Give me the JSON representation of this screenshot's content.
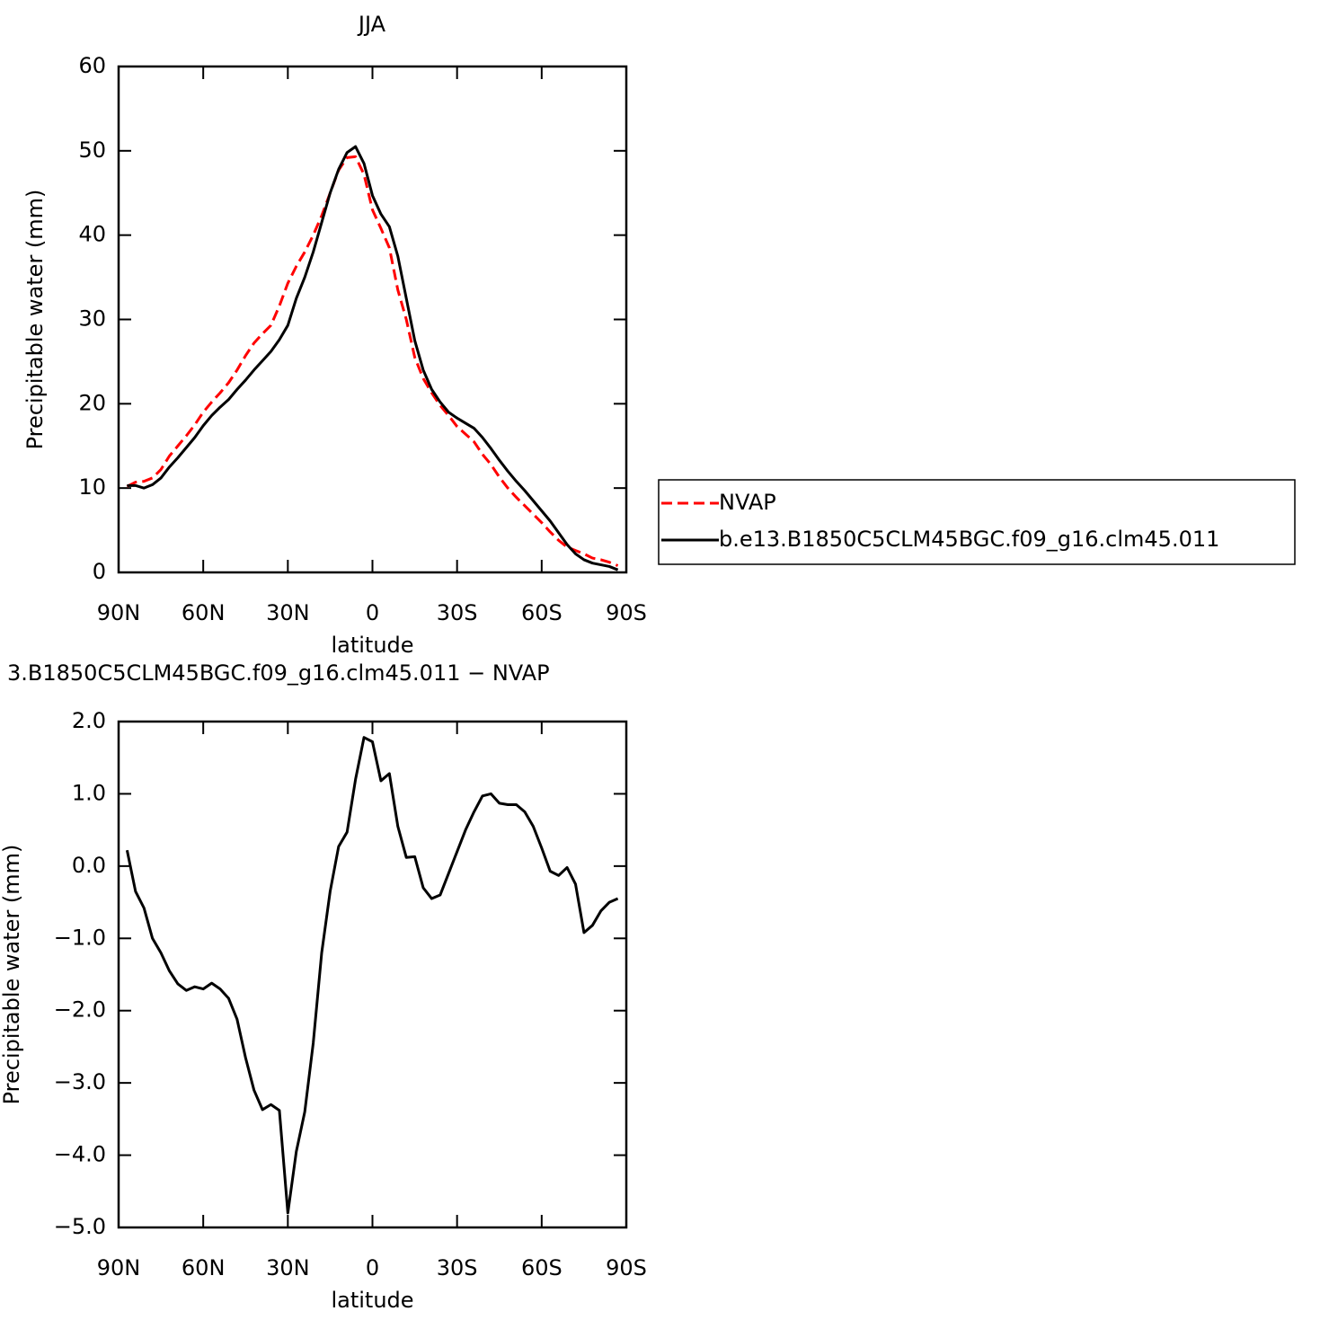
{
  "chart_data": [
    {
      "type": "line",
      "title": "JJA",
      "ylabel": "Precipitable water (mm)",
      "xlabel": "latitude",
      "xlim": [
        90,
        -90
      ],
      "ylim": [
        0,
        60
      ],
      "xticks": [
        {
          "value": 90,
          "label": "90N"
        },
        {
          "value": 60,
          "label": "60N"
        },
        {
          "value": 30,
          "label": "30N"
        },
        0,
        {
          "value": -30,
          "label": "30S"
        },
        {
          "value": -60,
          "label": "60S"
        },
        {
          "value": -90,
          "label": "90S"
        }
      ],
      "yticks": [
        0,
        10,
        20,
        30,
        40,
        50,
        60
      ],
      "legend": "right",
      "x": [
        87,
        84,
        81,
        78,
        75,
        72,
        69,
        66,
        63,
        60,
        57,
        54,
        51,
        48,
        45,
        42,
        39,
        36,
        33,
        30,
        27,
        24,
        21,
        18,
        15,
        12,
        9,
        6,
        3,
        0,
        -3,
        -6,
        -9,
        -12,
        -15,
        -18,
        -21,
        -24,
        -27,
        -30,
        -33,
        -36,
        -39,
        -42,
        -45,
        -48,
        -51,
        -54,
        -57,
        -60,
        -63,
        -66,
        -69,
        -72,
        -75,
        -78,
        -81,
        -84,
        -87
      ],
      "series": [
        {
          "name": "NVAP",
          "color": "#ff0000",
          "dashed": true,
          "values": [
            10.2,
            10.7,
            10.8,
            11.2,
            12.2,
            13.8,
            15.0,
            16.2,
            17.5,
            19.0,
            20.2,
            21.3,
            22.5,
            24.0,
            25.7,
            27.2,
            28.3,
            29.3,
            31.6,
            34.3,
            36.3,
            38.0,
            40.0,
            42.3,
            45.0,
            47.7,
            49.2,
            49.3,
            47.2,
            43.0,
            40.8,
            38.5,
            33.5,
            30.0,
            25.5,
            23.0,
            21.3,
            19.8,
            18.6,
            17.3,
            16.4,
            15.5,
            14.0,
            12.8,
            11.3,
            10.0,
            8.9,
            7.9,
            6.9,
            5.9,
            4.8,
            3.8,
            3.0,
            2.6,
            2.2,
            1.7,
            1.5,
            1.2,
            0.8
          ]
        },
        {
          "name": "b.e13.B1850C5CLM45BGC.f09_g16.clm45.011",
          "color": "#000000",
          "dashed": false,
          "values": [
            10.3,
            10.3,
            10.0,
            10.4,
            11.2,
            12.5,
            13.6,
            14.8,
            16.0,
            17.4,
            18.6,
            19.6,
            20.5,
            21.7,
            22.8,
            24.0,
            25.1,
            26.2,
            27.6,
            29.3,
            32.5,
            35.0,
            38.0,
            41.5,
            45.0,
            47.8,
            49.8,
            50.5,
            48.5,
            44.7,
            42.5,
            41.0,
            37.5,
            32.5,
            27.5,
            24.0,
            21.7,
            20.2,
            19.0,
            18.3,
            17.7,
            17.1,
            16.0,
            14.7,
            13.3,
            12.0,
            10.8,
            9.7,
            8.5,
            7.3,
            6.1,
            4.7,
            3.3,
            2.2,
            1.5,
            1.1,
            0.9,
            0.7,
            0.3
          ]
        }
      ]
    },
    {
      "type": "line",
      "title": "3.B1850C5CLM45BGC.f09_g16.clm45.011 − NVAP",
      "ylabel": "Precipitable water (mm)",
      "xlabel": "latitude",
      "xlim": [
        90,
        -90
      ],
      "ylim": [
        -5,
        2
      ],
      "xticks": [
        {
          "value": 90,
          "label": "90N"
        },
        {
          "value": 60,
          "label": "60N"
        },
        {
          "value": 30,
          "label": "30N"
        },
        0,
        {
          "value": -30,
          "label": "30S"
        },
        {
          "value": -60,
          "label": "60S"
        },
        {
          "value": -90,
          "label": "90S"
        }
      ],
      "yticks": [
        {
          "value": -5,
          "label": "−5.0"
        },
        {
          "value": -4,
          "label": "−4.0"
        },
        {
          "value": -3,
          "label": "−3.0"
        },
        {
          "value": -2,
          "label": "−2.0"
        },
        {
          "value": -1,
          "label": "−1.0"
        },
        {
          "value": 0,
          "label": "0.0"
        },
        {
          "value": 1,
          "label": "1.0"
        },
        {
          "value": 2,
          "label": "2.0"
        }
      ],
      "x": [
        87,
        84,
        81,
        78,
        75,
        72,
        69,
        66,
        63,
        60,
        57,
        54,
        51,
        48,
        45,
        42,
        39,
        36,
        33,
        30,
        27,
        24,
        21,
        18,
        15,
        12,
        9,
        6,
        3,
        0,
        -3,
        -6,
        -9,
        -12,
        -15,
        -18,
        -21,
        -24,
        -27,
        -30,
        -33,
        -36,
        -39,
        -42,
        -45,
        -48,
        -51,
        -54,
        -57,
        -60,
        -63,
        -66,
        -69,
        -72,
        -75,
        -78,
        -81,
        -84,
        -87
      ],
      "series": [
        {
          "color": "#000000",
          "dashed": false,
          "values": [
            0.22,
            -0.35,
            -0.58,
            -1.0,
            -1.2,
            -1.45,
            -1.63,
            -1.72,
            -1.67,
            -1.7,
            -1.62,
            -1.7,
            -1.83,
            -2.12,
            -2.65,
            -3.1,
            -3.37,
            -3.3,
            -3.38,
            -4.8,
            -3.95,
            -3.4,
            -2.45,
            -1.2,
            -0.35,
            0.27,
            0.47,
            1.2,
            1.78,
            1.72,
            1.18,
            1.28,
            0.55,
            0.12,
            0.13,
            -0.3,
            -0.45,
            -0.4,
            -0.1,
            0.2,
            0.5,
            0.75,
            0.97,
            1.0,
            0.87,
            0.85,
            0.85,
            0.75,
            0.55,
            0.25,
            -0.07,
            -0.13,
            -0.02,
            -0.25,
            -0.92,
            -0.82,
            -0.62,
            -0.5,
            -0.45
          ]
        }
      ]
    }
  ]
}
